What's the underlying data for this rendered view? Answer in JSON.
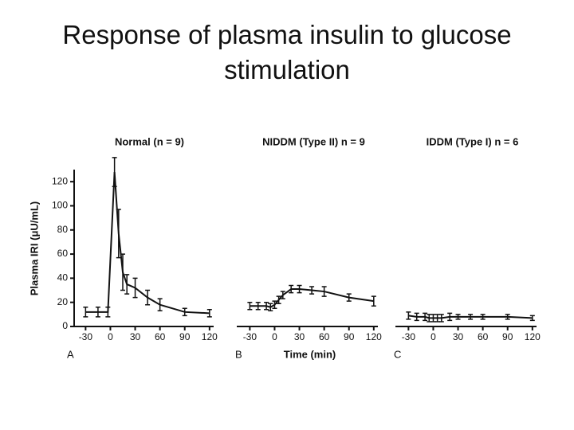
{
  "title": "Response of plasma insulin to glucose stimulation",
  "chart_data": [
    {
      "type": "line",
      "title": "Normal (n = 9)",
      "panel": "A",
      "y_label": "Plasma IRI (μU/mL)",
      "x": [
        -30,
        -15,
        -3,
        5,
        10,
        15,
        20,
        30,
        45,
        60,
        90,
        120
      ],
      "series": [
        {
          "color": "#111111",
          "values": [
            12,
            12,
            12,
            128,
            77,
            45,
            35,
            32,
            24,
            18,
            12,
            11
          ],
          "errors": [
            4,
            4,
            4,
            12,
            20,
            15,
            8,
            8,
            6,
            5,
            3,
            3
          ]
        }
      ],
      "xlim": [
        -40,
        125
      ],
      "xticks": [
        -30,
        0,
        30,
        60,
        90,
        120
      ],
      "ylim": [
        0,
        130
      ],
      "yticks": [
        0,
        20,
        40,
        60,
        80,
        100,
        120
      ]
    },
    {
      "type": "line",
      "title": "NIDDM (Type II) n = 9",
      "panel": "B",
      "x_label": "Time (min)",
      "x": [
        -30,
        -20,
        -10,
        -5,
        0,
        5,
        10,
        20,
        30,
        45,
        60,
        90,
        120
      ],
      "series": [
        {
          "color": "#111111",
          "values": [
            17,
            17,
            17,
            16,
            18,
            22,
            26,
            31,
            31,
            30,
            29,
            24,
            21
          ],
          "errors": [
            3,
            3,
            3,
            3,
            3,
            3,
            3,
            3,
            3,
            3,
            4,
            3,
            4
          ]
        }
      ],
      "xlim": [
        -40,
        125
      ],
      "xticks": [
        -30,
        0,
        30,
        60,
        90,
        120
      ],
      "ylim": [
        0,
        130
      ]
    },
    {
      "type": "line",
      "title": "IDDM (Type I) n = 6",
      "panel": "C",
      "x": [
        -30,
        -20,
        -10,
        -5,
        0,
        5,
        10,
        20,
        30,
        45,
        60,
        90,
        120
      ],
      "series": [
        {
          "color": "#111111",
          "values": [
            9,
            8,
            8,
            7,
            7,
            7,
            7,
            8,
            8,
            8,
            8,
            8,
            7
          ],
          "errors": [
            3,
            3,
            3,
            3,
            3,
            3,
            3,
            3,
            2,
            2,
            2,
            2,
            2
          ]
        }
      ],
      "xlim": [
        -40,
        125
      ],
      "xticks": [
        -30,
        0,
        30,
        60,
        90,
        120
      ],
      "ylim": [
        0,
        130
      ]
    }
  ]
}
